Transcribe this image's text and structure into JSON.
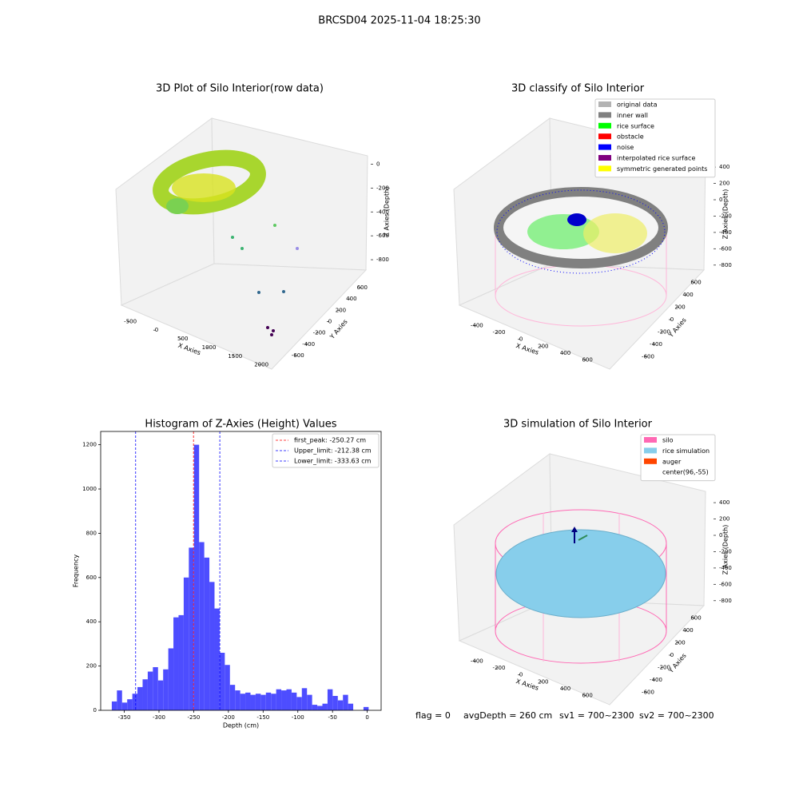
{
  "title": "BRCSD04 2025-11-04 18:25:30",
  "chart_data": [
    {
      "type": "scatter3d",
      "title": "3D Plot of Silo Interior(row data)",
      "xlabel": "X Axies",
      "ylabel": "Y Axies",
      "zlabel": "Z Axies (Depth)",
      "xlim": [
        -700,
        2150
      ],
      "ylim": [
        -700,
        700
      ],
      "zlim": [
        -900,
        50
      ],
      "xticks": [
        -500,
        0,
        500,
        1000,
        1500,
        2000
      ],
      "yticks": [
        -600,
        -400,
        -200,
        0,
        200,
        400,
        600
      ],
      "zticks": [
        0,
        -200,
        -400,
        -600,
        -800
      ]
    },
    {
      "type": "classify3d",
      "title": "3D classify of Silo Interior",
      "xlabel": "X Axies",
      "ylabel": "Y Axies",
      "zlabel": "Z Axies (Depth)",
      "xlim": [
        -500,
        700
      ],
      "ylim": [
        -700,
        700
      ],
      "zlim": [
        -900,
        450
      ],
      "xticks": [
        -400,
        -200,
        0,
        200,
        400,
        600
      ],
      "yticks": [
        -600,
        -400,
        -200,
        0,
        200,
        400,
        600
      ],
      "zticks": [
        400,
        200,
        0,
        -200,
        -400,
        -600,
        -800
      ],
      "series": [
        {
          "name": "original data",
          "color": "#b3b3b3"
        },
        {
          "name": "inner wall",
          "color": "#808080"
        },
        {
          "name": "rice surface",
          "color": "#00ff00"
        },
        {
          "name": "obstacle",
          "color": "#ff0000"
        },
        {
          "name": "noise",
          "color": "#0000ff"
        },
        {
          "name": "interpolated rice surface",
          "color": "#800080"
        },
        {
          "name": "symmetric generated points",
          "color": "#ffff00"
        }
      ]
    },
    {
      "type": "histogram",
      "title": "Histogram of Z-Axies (Height) Values",
      "xlabel": "Depth (cm)",
      "ylabel": "Frequency",
      "color": "#4d4dff",
      "bins": [
        -368,
        -360.6,
        -353.2,
        -345.8,
        -338.4,
        -331,
        -323.6,
        -316.2,
        -308.8,
        -301.4,
        -294,
        -286.6,
        -279.2,
        -271.8,
        -264.4,
        -257,
        -249.6,
        -242.2,
        -234.8,
        -227.4,
        -220,
        -212.6,
        -205.2,
        -197.8,
        -190.4,
        -183,
        -175.6,
        -168.2,
        -160.8,
        -153.4,
        -146,
        -138.6,
        -131.2,
        -123.8,
        -116.4,
        -109,
        -101.6,
        -94.2,
        -86.8,
        -79.4,
        -72,
        -64.6,
        -57.2,
        -49.8,
        -42.4,
        -35,
        -27.6,
        -20.2,
        -12.8,
        -5.4,
        2
      ],
      "values": [
        40,
        90,
        35,
        50,
        75,
        105,
        140,
        175,
        195,
        135,
        185,
        280,
        420,
        430,
        600,
        735,
        1200,
        760,
        690,
        580,
        460,
        260,
        205,
        115,
        90,
        75,
        80,
        70,
        75,
        70,
        80,
        75,
        95,
        90,
        95,
        80,
        60,
        100,
        70,
        25,
        20,
        30,
        95,
        65,
        45,
        70,
        30,
        0,
        0,
        15
      ],
      "xlim": [
        -384,
        20
      ],
      "ylim": [
        0,
        1260
      ],
      "xticks": [
        -350,
        -300,
        -250,
        -200,
        -150,
        -100,
        -50,
        0
      ],
      "yticks": [
        0,
        200,
        400,
        600,
        800,
        1000,
        1200
      ],
      "vlines": [
        {
          "name": "first_peak: -250.27 cm",
          "value": -250.27,
          "color": "#ff0000"
        },
        {
          "name": "Upper_limit: -212.38 cm",
          "value": -212.38,
          "color": "#0000ff"
        },
        {
          "name": "Lower_limit: -333.63 cm",
          "value": -333.63,
          "color": "#0000ff"
        }
      ]
    },
    {
      "type": "simulation3d",
      "title": "3D simulation of Silo Interior",
      "xlabel": "X Axies",
      "ylabel": "Y Axies",
      "zlabel": "Z Axies (Depth)",
      "xlim": [
        -500,
        700
      ],
      "ylim": [
        -700,
        700
      ],
      "zlim": [
        -900,
        450
      ],
      "xticks": [
        -400,
        -200,
        0,
        200,
        400,
        600
      ],
      "yticks": [
        -600,
        -400,
        -200,
        0,
        200,
        400,
        600
      ],
      "zticks": [
        400,
        200,
        0,
        -200,
        -400,
        -600,
        -800
      ],
      "series": [
        {
          "name": "silo",
          "color": "#ff69b4"
        },
        {
          "name": "rice simulation",
          "color": "#87ceeb"
        },
        {
          "name": "auger",
          "color": "#ff4500"
        },
        {
          "name": "center(96,-55)",
          "color": "#ffffff"
        }
      ]
    }
  ],
  "footer": [
    "flag = 0",
    "avgDepth = 260 cm",
    "sv1 = 700~2300",
    "sv2 = 700~2300"
  ]
}
